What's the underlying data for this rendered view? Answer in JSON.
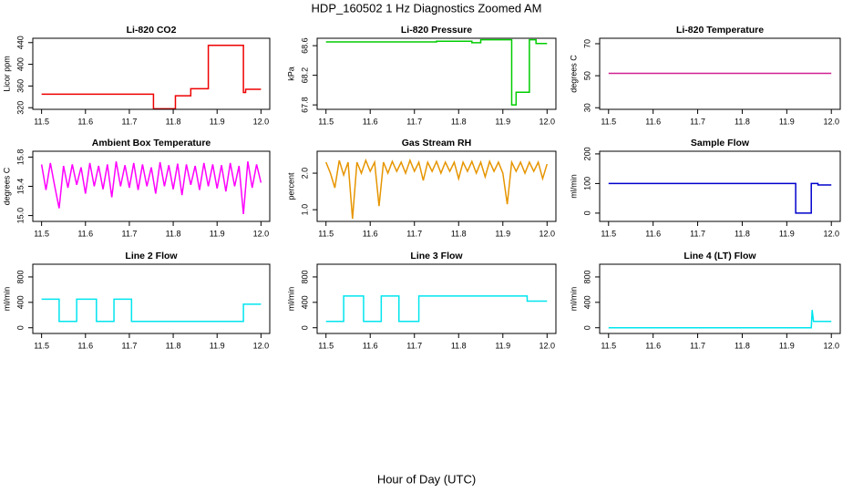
{
  "title": "HDP_160502  1 Hz Diagnostics Zoomed AM",
  "x_label": "Hour of Day (UTC)",
  "chart_data": [
    {
      "type": "line",
      "title": "Li-820 CO2",
      "y_label": "Licor ppm",
      "color": "#ee0000",
      "x": [
        11.5,
        11.755,
        11.755,
        11.805,
        11.805,
        11.84,
        11.84,
        11.88,
        11.88,
        11.96,
        11.96,
        11.965,
        11.965,
        12.0
      ],
      "values": [
        345,
        345,
        318,
        318,
        342,
        342,
        355,
        355,
        435,
        435,
        348,
        348,
        354,
        354
      ],
      "xlim": [
        11.48,
        12.02
      ],
      "xticks": [
        11.5,
        11.6,
        11.7,
        11.8,
        11.9,
        {
          "value": 12,
          "label": "12.0"
        }
      ],
      "ylim": [
        317,
        448
      ],
      "yticks": [
        320,
        360,
        400,
        440
      ]
    },
    {
      "type": "line",
      "title": "Li-820 Pressure",
      "y_label": "kPa",
      "color": "#00cc00",
      "x": [
        11.5,
        11.75,
        11.75,
        11.83,
        11.83,
        11.85,
        11.85,
        11.92,
        11.92,
        11.93,
        11.93,
        11.96,
        11.96,
        11.975,
        11.975,
        12.0
      ],
      "values": [
        68.65,
        68.65,
        68.66,
        68.66,
        68.64,
        68.64,
        68.68,
        68.68,
        67.8,
        67.8,
        67.97,
        67.97,
        68.68,
        68.68,
        68.63,
        68.63
      ],
      "xlim": [
        11.48,
        12.02
      ],
      "xticks": [
        11.5,
        11.6,
        11.7,
        11.8,
        11.9,
        {
          "value": 12,
          "label": "12.0"
        }
      ],
      "ylim": [
        67.74,
        68.7
      ],
      "yticks": [
        67.8,
        68.2,
        68.6
      ]
    },
    {
      "type": "line",
      "title": "Li-820 Temperature",
      "y_label": "degrees C",
      "color": "#d0208f",
      "x": [
        11.5,
        12.0
      ],
      "values": [
        51.5,
        51.5
      ],
      "xlim": [
        11.48,
        12.02
      ],
      "xticks": [
        11.5,
        11.6,
        11.7,
        11.8,
        11.9,
        {
          "value": 12,
          "label": "12.0"
        }
      ],
      "ylim": [
        29,
        73.4
      ],
      "yticks": [
        30,
        50,
        70
      ]
    },
    {
      "type": "line",
      "title": "Ambient Box Temperature",
      "y_label": "degrees C",
      "color": "#ff00ff",
      "x": [
        11.5,
        11.51,
        11.52,
        11.53,
        11.54,
        11.55,
        11.56,
        11.57,
        11.58,
        11.59,
        11.6,
        11.61,
        11.62,
        11.63,
        11.64,
        11.65,
        11.66,
        11.67,
        11.68,
        11.69,
        11.7,
        11.71,
        11.72,
        11.73,
        11.74,
        11.75,
        11.76,
        11.77,
        11.78,
        11.79,
        11.8,
        11.81,
        11.82,
        11.83,
        11.84,
        11.85,
        11.86,
        11.87,
        11.88,
        11.89,
        11.9,
        11.91,
        11.92,
        11.93,
        11.94,
        11.95,
        11.96,
        11.97,
        11.98,
        11.99,
        12.0
      ],
      "values": [
        15.7,
        15.35,
        15.72,
        15.4,
        15.1,
        15.68,
        15.38,
        15.7,
        15.42,
        15.66,
        15.3,
        15.72,
        15.4,
        15.68,
        15.36,
        15.7,
        15.25,
        15.74,
        15.4,
        15.69,
        15.38,
        15.72,
        15.35,
        15.7,
        15.4,
        15.66,
        15.3,
        15.73,
        15.4,
        15.69,
        15.36,
        15.71,
        15.28,
        15.7,
        15.42,
        15.68,
        15.35,
        15.72,
        15.4,
        15.7,
        15.37,
        15.69,
        15.33,
        15.72,
        15.4,
        15.68,
        15.02,
        15.74,
        15.38,
        15.7,
        15.45
      ],
      "xlim": [
        11.48,
        12.02
      ],
      "xticks": [
        11.5,
        11.6,
        11.7,
        11.8,
        11.9,
        {
          "value": 12,
          "label": "12.0"
        }
      ],
      "ylim": [
        14.92,
        15.88
      ],
      "yticks": [
        {
          "value": 15,
          "label": "15.0"
        },
        15.4,
        15.8
      ]
    },
    {
      "type": "line",
      "title": "Gas Stream RH",
      "y_label": "percent",
      "color": "#e69500",
      "x": [
        11.5,
        11.51,
        11.52,
        11.53,
        11.54,
        11.55,
        11.56,
        11.57,
        11.58,
        11.59,
        11.6,
        11.61,
        11.62,
        11.63,
        11.64,
        11.65,
        11.66,
        11.67,
        11.68,
        11.69,
        11.7,
        11.71,
        11.72,
        11.73,
        11.74,
        11.75,
        11.76,
        11.77,
        11.78,
        11.79,
        11.8,
        11.81,
        11.82,
        11.83,
        11.84,
        11.85,
        11.86,
        11.87,
        11.88,
        11.89,
        11.9,
        11.91,
        11.92,
        11.93,
        11.94,
        11.95,
        11.96,
        11.97,
        11.98,
        11.99,
        12.0
      ],
      "values": [
        2.3,
        2.0,
        1.6,
        2.35,
        1.95,
        2.3,
        0.75,
        2.3,
        2.0,
        2.35,
        2.05,
        2.3,
        1.1,
        2.3,
        2.0,
        2.32,
        2.05,
        2.3,
        2.0,
        2.35,
        2.05,
        2.3,
        1.8,
        2.3,
        2.05,
        2.32,
        2.0,
        2.3,
        2.05,
        2.3,
        1.85,
        2.3,
        2.05,
        2.32,
        2.0,
        2.3,
        1.9,
        2.32,
        2.05,
        2.3,
        2.0,
        1.15,
        2.3,
        2.05,
        2.3,
        2.0,
        2.3,
        2.05,
        2.3,
        1.85,
        2.25
      ],
      "xlim": [
        11.48,
        12.02
      ],
      "xticks": [
        11.5,
        11.6,
        11.7,
        11.8,
        11.9,
        {
          "value": 12,
          "label": "12.0"
        }
      ],
      "ylim": [
        0.68,
        2.6
      ],
      "yticks": [
        {
          "value": 1,
          "label": "1.0"
        },
        {
          "value": 2,
          "label": "2.0"
        }
      ]
    },
    {
      "type": "line",
      "title": "Sample Flow",
      "y_label": "ml/min",
      "color": "#0000cc",
      "x": [
        11.5,
        11.92,
        11.92,
        11.955,
        11.955,
        11.97,
        11.97,
        12.0
      ],
      "values": [
        100,
        100,
        0,
        0,
        100,
        100,
        95,
        95
      ],
      "xlim": [
        11.48,
        12.02
      ],
      "xticks": [
        11.5,
        11.6,
        11.7,
        11.8,
        11.9,
        {
          "value": 12,
          "label": "12.0"
        }
      ],
      "ylim": [
        -28,
        209
      ],
      "yticks": [
        0,
        100,
        200
      ]
    },
    {
      "type": "line",
      "title": "Line 2 Flow",
      "y_label": "ml/min",
      "color": "#00e5ee",
      "x": [
        11.5,
        11.54,
        11.54,
        11.58,
        11.58,
        11.625,
        11.625,
        11.665,
        11.665,
        11.705,
        11.705,
        11.96,
        11.96,
        12.0
      ],
      "values": [
        450,
        450,
        100,
        100,
        450,
        450,
        100,
        100,
        450,
        450,
        100,
        100,
        370,
        370
      ],
      "xlim": [
        11.48,
        12.02
      ],
      "xticks": [
        11.5,
        11.6,
        11.7,
        11.8,
        11.9,
        {
          "value": 12,
          "label": "12.0"
        }
      ],
      "ylim": [
        -90,
        1000
      ],
      "yticks": [
        0,
        400,
        800
      ]
    },
    {
      "type": "line",
      "title": "Line 3 Flow",
      "y_label": "ml/min",
      "color": "#00e5ee",
      "x": [
        11.5,
        11.54,
        11.54,
        11.585,
        11.585,
        11.625,
        11.625,
        11.665,
        11.665,
        11.71,
        11.71,
        11.955,
        11.955,
        12.0
      ],
      "values": [
        100,
        100,
        500,
        500,
        100,
        100,
        500,
        500,
        100,
        100,
        500,
        500,
        420,
        420
      ],
      "xlim": [
        11.48,
        12.02
      ],
      "xticks": [
        11.5,
        11.6,
        11.7,
        11.8,
        11.9,
        {
          "value": 12,
          "label": "12.0"
        }
      ],
      "ylim": [
        -90,
        1000
      ],
      "yticks": [
        0,
        400,
        800
      ]
    },
    {
      "type": "line",
      "title": "Line 4 (LT) Flow",
      "y_label": "ml/min",
      "color": "#00e5ee",
      "x": [
        11.5,
        11.955,
        11.957,
        11.96,
        11.96,
        12.0
      ],
      "values": [
        0,
        0,
        280,
        100,
        100,
        100
      ],
      "xlim": [
        11.48,
        12.02
      ],
      "xticks": [
        11.5,
        11.6,
        11.7,
        11.8,
        11.9,
        {
          "value": 12,
          "label": "12.0"
        }
      ],
      "ylim": [
        -90,
        1000
      ],
      "yticks": [
        0,
        400,
        800
      ]
    }
  ]
}
